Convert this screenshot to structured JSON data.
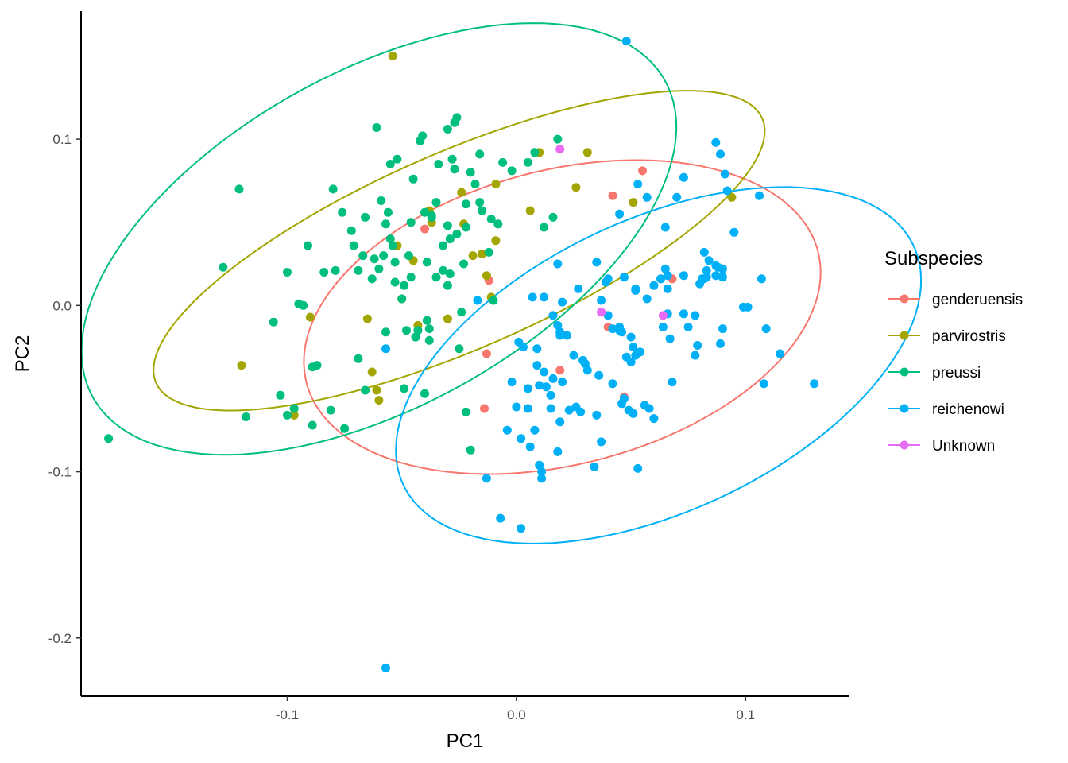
{
  "chart_data": {
    "type": "scatter",
    "xlabel": "PC1",
    "ylabel": "PC2",
    "xlim": [
      -0.19,
      0.145
    ],
    "ylim": [
      -0.235,
      0.177
    ],
    "x_ticks": [
      -0.1,
      0.0,
      0.1
    ],
    "x_tick_labels": [
      "-0.1",
      "0.0",
      "0.1"
    ],
    "y_ticks": [
      -0.2,
      -0.1,
      0.0,
      0.1
    ],
    "y_tick_labels": [
      "-0.2",
      "-0.1",
      "0.0",
      "0.1"
    ],
    "grid": false,
    "legend": {
      "title": "Subspecies",
      "position": "right"
    },
    "series": [
      {
        "name": "genderuensis",
        "color": "#F8766D",
        "points": [
          [
            -0.04,
            0.046
          ],
          [
            -0.012,
            0.015
          ],
          [
            -0.013,
            -0.029
          ],
          [
            -0.014,
            -0.062
          ],
          [
            0.019,
            -0.039
          ],
          [
            0.042,
            0.066
          ],
          [
            0.055,
            0.081
          ],
          [
            0.068,
            0.016
          ],
          [
            0.04,
            -0.013
          ],
          [
            0.047,
            -0.055
          ]
        ],
        "ellipse": {
          "center": [
            0.02,
            -0.007
          ],
          "semi_major": 0.12,
          "semi_minor": 0.085,
          "angle_deg": 29
        }
      },
      {
        "name": "parvirostris",
        "color": "#A3A500",
        "points": [
          [
            -0.054,
            0.15
          ],
          [
            -0.12,
            -0.036
          ],
          [
            -0.09,
            -0.007
          ],
          [
            -0.097,
            -0.066
          ],
          [
            -0.05,
            0.004
          ],
          [
            -0.052,
            0.036
          ],
          [
            -0.045,
            0.027
          ],
          [
            -0.037,
            0.05
          ],
          [
            -0.038,
            0.057
          ],
          [
            -0.024,
            0.068
          ],
          [
            -0.019,
            0.03
          ],
          [
            -0.013,
            0.018
          ],
          [
            -0.009,
            0.073
          ],
          [
            -0.009,
            0.039
          ],
          [
            -0.011,
            0.005
          ],
          [
            -0.063,
            -0.04
          ],
          [
            -0.061,
            -0.051
          ],
          [
            -0.06,
            -0.057
          ],
          [
            -0.065,
            -0.008
          ],
          [
            -0.015,
            0.031
          ],
          [
            0.006,
            0.057
          ],
          [
            0.01,
            0.092
          ],
          [
            0.026,
            0.071
          ],
          [
            0.031,
            0.092
          ],
          [
            0.051,
            0.062
          ],
          [
            0.094,
            0.065
          ],
          [
            -0.023,
            0.049
          ],
          [
            -0.043,
            -0.012
          ],
          [
            -0.03,
            -0.008
          ]
        ],
        "ellipse": {
          "center": [
            -0.025,
            0.033
          ],
          "semi_major": 0.155,
          "semi_minor": 0.055,
          "angle_deg": 33
        }
      },
      {
        "name": "preussi",
        "color": "#00BF7D",
        "points": [
          [
            -0.178,
            -0.08
          ],
          [
            -0.128,
            0.023
          ],
          [
            -0.121,
            0.07
          ],
          [
            -0.118,
            -0.067
          ],
          [
            -0.1,
            0.02
          ],
          [
            -0.106,
            -0.01
          ],
          [
            -0.103,
            -0.054
          ],
          [
            -0.1,
            -0.066
          ],
          [
            -0.097,
            -0.062
          ],
          [
            -0.095,
            0.001
          ],
          [
            -0.093,
            0.0
          ],
          [
            -0.091,
            0.036
          ],
          [
            -0.089,
            -0.037
          ],
          [
            -0.089,
            -0.072
          ],
          [
            -0.087,
            -0.036
          ],
          [
            -0.084,
            0.02
          ],
          [
            -0.081,
            -0.063
          ],
          [
            -0.08,
            0.07
          ],
          [
            -0.079,
            0.021
          ],
          [
            -0.076,
            0.056
          ],
          [
            -0.075,
            -0.074
          ],
          [
            -0.072,
            0.045
          ],
          [
            -0.071,
            0.036
          ],
          [
            -0.069,
            0.021
          ],
          [
            -0.069,
            -0.032
          ],
          [
            -0.067,
            0.03
          ],
          [
            -0.066,
            -0.051
          ],
          [
            -0.063,
            0.016
          ],
          [
            -0.062,
            0.028
          ],
          [
            -0.061,
            0.107
          ],
          [
            -0.059,
            0.063
          ],
          [
            -0.058,
            0.03
          ],
          [
            -0.057,
            0.049
          ],
          [
            -0.057,
            -0.016
          ],
          [
            -0.055,
            0.085
          ],
          [
            -0.055,
            0.04
          ],
          [
            -0.054,
            0.036
          ],
          [
            -0.053,
            0.026
          ],
          [
            -0.052,
            0.088
          ],
          [
            -0.05,
            0.004
          ],
          [
            -0.049,
            -0.05
          ],
          [
            -0.048,
            -0.015
          ],
          [
            -0.047,
            0.03
          ],
          [
            -0.045,
            0.076
          ],
          [
            -0.043,
            -0.015
          ],
          [
            -0.042,
            0.099
          ],
          [
            -0.041,
            0.102
          ],
          [
            -0.04,
            -0.053
          ],
          [
            -0.039,
            -0.009
          ],
          [
            -0.038,
            -0.021
          ],
          [
            -0.037,
            0.053
          ],
          [
            -0.037,
            0.054
          ],
          [
            -0.035,
            0.062
          ],
          [
            -0.034,
            0.085
          ],
          [
            -0.032,
            0.036
          ],
          [
            -0.03,
            0.048
          ],
          [
            -0.029,
            0.04
          ],
          [
            -0.029,
            0.019
          ],
          [
            -0.028,
            0.088
          ],
          [
            -0.027,
            0.082
          ],
          [
            -0.027,
            0.11
          ],
          [
            -0.026,
            0.113
          ],
          [
            -0.026,
            0.043
          ],
          [
            -0.024,
            -0.004
          ],
          [
            -0.023,
            0.025
          ],
          [
            -0.022,
            -0.064
          ],
          [
            -0.022,
            0.061
          ],
          [
            -0.022,
            0.047
          ],
          [
            -0.02,
            -0.087
          ],
          [
            -0.018,
            0.073
          ],
          [
            -0.016,
            0.091
          ],
          [
            -0.015,
            0.057
          ],
          [
            -0.012,
            0.032
          ],
          [
            -0.01,
            0.003
          ],
          [
            -0.008,
            0.049
          ],
          [
            -0.006,
            0.086
          ],
          [
            -0.002,
            0.081
          ],
          [
            0.005,
            0.086
          ],
          [
            0.008,
            0.092
          ],
          [
            0.012,
            0.047
          ],
          [
            0.016,
            0.053
          ],
          [
            0.018,
            0.1
          ],
          [
            -0.056,
            0.056
          ],
          [
            -0.053,
            0.014
          ],
          [
            -0.046,
            0.017
          ],
          [
            -0.044,
            -0.019
          ],
          [
            -0.039,
            0.026
          ],
          [
            -0.035,
            0.017
          ],
          [
            -0.03,
            0.012
          ],
          [
            -0.032,
            0.021
          ],
          [
            -0.02,
            0.08
          ],
          [
            -0.011,
            0.052
          ],
          [
            -0.03,
            0.106
          ],
          [
            -0.049,
            0.012
          ],
          [
            -0.046,
            0.05
          ],
          [
            -0.06,
            0.022
          ],
          [
            -0.016,
            0.062
          ],
          [
            -0.04,
            0.056
          ],
          [
            -0.025,
            -0.026
          ],
          [
            -0.038,
            -0.014
          ],
          [
            -0.066,
            0.053
          ]
        ],
        "ellipse": {
          "center": [
            -0.06,
            0.04
          ],
          "semi_major": 0.16,
          "semi_minor": 0.09,
          "angle_deg": 45
        }
      },
      {
        "name": "reichenowi",
        "color": "#00B0F6",
        "points": [
          [
            -0.057,
            -0.218
          ],
          [
            0.048,
            0.159
          ],
          [
            0.087,
            0.098
          ],
          [
            0.089,
            0.091
          ],
          [
            0.091,
            0.079
          ],
          [
            0.106,
            0.066
          ],
          [
            0.092,
            0.069
          ],
          [
            0.095,
            0.044
          ],
          [
            0.073,
            0.077
          ],
          [
            0.07,
            0.065
          ],
          [
            0.057,
            0.065
          ],
          [
            0.053,
            0.073
          ],
          [
            0.045,
            0.055
          ],
          [
            0.065,
            0.047
          ],
          [
            0.082,
            0.032
          ],
          [
            0.084,
            0.027
          ],
          [
            0.087,
            0.024
          ],
          [
            0.088,
            0.023
          ],
          [
            0.083,
            0.021
          ],
          [
            0.09,
            0.022
          ],
          [
            0.087,
            0.018
          ],
          [
            0.09,
            0.017
          ],
          [
            0.107,
            0.016
          ],
          [
            0.101,
            -0.001
          ],
          [
            0.099,
            -0.001
          ],
          [
            0.109,
            -0.014
          ],
          [
            0.115,
            -0.029
          ],
          [
            0.108,
            -0.047
          ],
          [
            0.13,
            -0.047
          ],
          [
            0.078,
            -0.006
          ],
          [
            0.09,
            -0.014
          ],
          [
            0.089,
            -0.023
          ],
          [
            0.078,
            -0.03
          ],
          [
            0.073,
            -0.005
          ],
          [
            0.066,
            -0.005
          ],
          [
            0.065,
            0.022
          ],
          [
            0.066,
            0.018
          ],
          [
            0.063,
            0.016
          ],
          [
            0.06,
            0.012
          ],
          [
            0.057,
            0.004
          ],
          [
            0.052,
            0.009
          ],
          [
            0.047,
            0.017
          ],
          [
            0.04,
            0.016
          ],
          [
            0.039,
            0.014
          ],
          [
            0.037,
            0.003
          ],
          [
            0.035,
            0.026
          ],
          [
            0.027,
            0.01
          ],
          [
            0.02,
            0.002
          ],
          [
            0.016,
            -0.006
          ],
          [
            0.018,
            -0.012
          ],
          [
            0.012,
            0.005
          ],
          [
            0.007,
            0.005
          ],
          [
            0.001,
            -0.022
          ],
          [
            0.003,
            -0.025
          ],
          [
            -0.002,
            -0.046
          ],
          [
            0.005,
            -0.05
          ],
          [
            0.009,
            -0.036
          ],
          [
            0.01,
            -0.048
          ],
          [
            0.013,
            -0.049
          ],
          [
            0.015,
            -0.054
          ],
          [
            0.016,
            -0.044
          ],
          [
            0.02,
            -0.046
          ],
          [
            0.025,
            -0.03
          ],
          [
            0.03,
            -0.035
          ],
          [
            0.031,
            -0.039
          ],
          [
            0.026,
            -0.061
          ],
          [
            0.028,
            -0.064
          ],
          [
            0.035,
            -0.066
          ],
          [
            0.037,
            -0.082
          ],
          [
            0.042,
            -0.014
          ],
          [
            0.045,
            -0.015
          ],
          [
            0.046,
            -0.016
          ],
          [
            0.05,
            -0.019
          ],
          [
            0.051,
            -0.025
          ],
          [
            0.052,
            -0.03
          ],
          [
            0.054,
            -0.028
          ],
          [
            0.056,
            -0.06
          ],
          [
            0.058,
            -0.062
          ],
          [
            0.06,
            -0.068
          ],
          [
            0.064,
            -0.013
          ],
          [
            0.067,
            -0.02
          ],
          [
            0.068,
            -0.046
          ],
          [
            0.075,
            -0.013
          ],
          [
            0.079,
            -0.024
          ],
          [
            0.046,
            -0.059
          ],
          [
            0.049,
            -0.063
          ],
          [
            0.051,
            -0.065
          ],
          [
            0.047,
            -0.056
          ],
          [
            0.042,
            -0.047
          ],
          [
            0.048,
            -0.031
          ],
          [
            0.05,
            -0.034
          ],
          [
            0.034,
            -0.097
          ],
          [
            0.053,
            -0.098
          ],
          [
            0.01,
            -0.096
          ],
          [
            0.011,
            -0.1
          ],
          [
            0.011,
            -0.104
          ],
          [
            0.006,
            -0.085
          ],
          [
            0.018,
            -0.088
          ],
          [
            0.019,
            -0.07
          ],
          [
            0.015,
            -0.062
          ],
          [
            0.008,
            -0.075
          ],
          [
            0.005,
            -0.062
          ],
          [
            0.0,
            -0.061
          ],
          [
            0.002,
            -0.08
          ],
          [
            -0.004,
            -0.075
          ],
          [
            -0.013,
            -0.104
          ],
          [
            -0.007,
            -0.128
          ],
          [
            0.002,
            -0.134
          ],
          [
            0.023,
            -0.063
          ],
          [
            -0.017,
            0.003
          ],
          [
            0.018,
            0.025
          ],
          [
            0.052,
            0.01
          ],
          [
            0.066,
            0.01
          ],
          [
            0.073,
            0.018
          ],
          [
            0.08,
            0.013
          ],
          [
            0.081,
            0.016
          ],
          [
            0.082,
            0.016
          ],
          [
            0.083,
            0.017
          ],
          [
            0.019,
            -0.016
          ],
          [
            0.019,
            -0.018
          ],
          [
            0.029,
            -0.033
          ],
          [
            0.045,
            -0.013
          ],
          [
            0.04,
            -0.006
          ],
          [
            -0.057,
            -0.026
          ],
          [
            0.009,
            -0.026
          ],
          [
            0.022,
            -0.018
          ],
          [
            0.012,
            -0.04
          ],
          [
            0.036,
            -0.042
          ]
        ],
        "ellipse": {
          "center": [
            0.062,
            -0.036
          ],
          "semi_major": 0.135,
          "semi_minor": 0.08,
          "angle_deg": 41
        }
      },
      {
        "name": "Unknown",
        "color": "#E76BF3",
        "points": [
          [
            0.019,
            0.094
          ],
          [
            0.037,
            -0.004
          ],
          [
            0.064,
            -0.006
          ]
        ]
      }
    ]
  }
}
